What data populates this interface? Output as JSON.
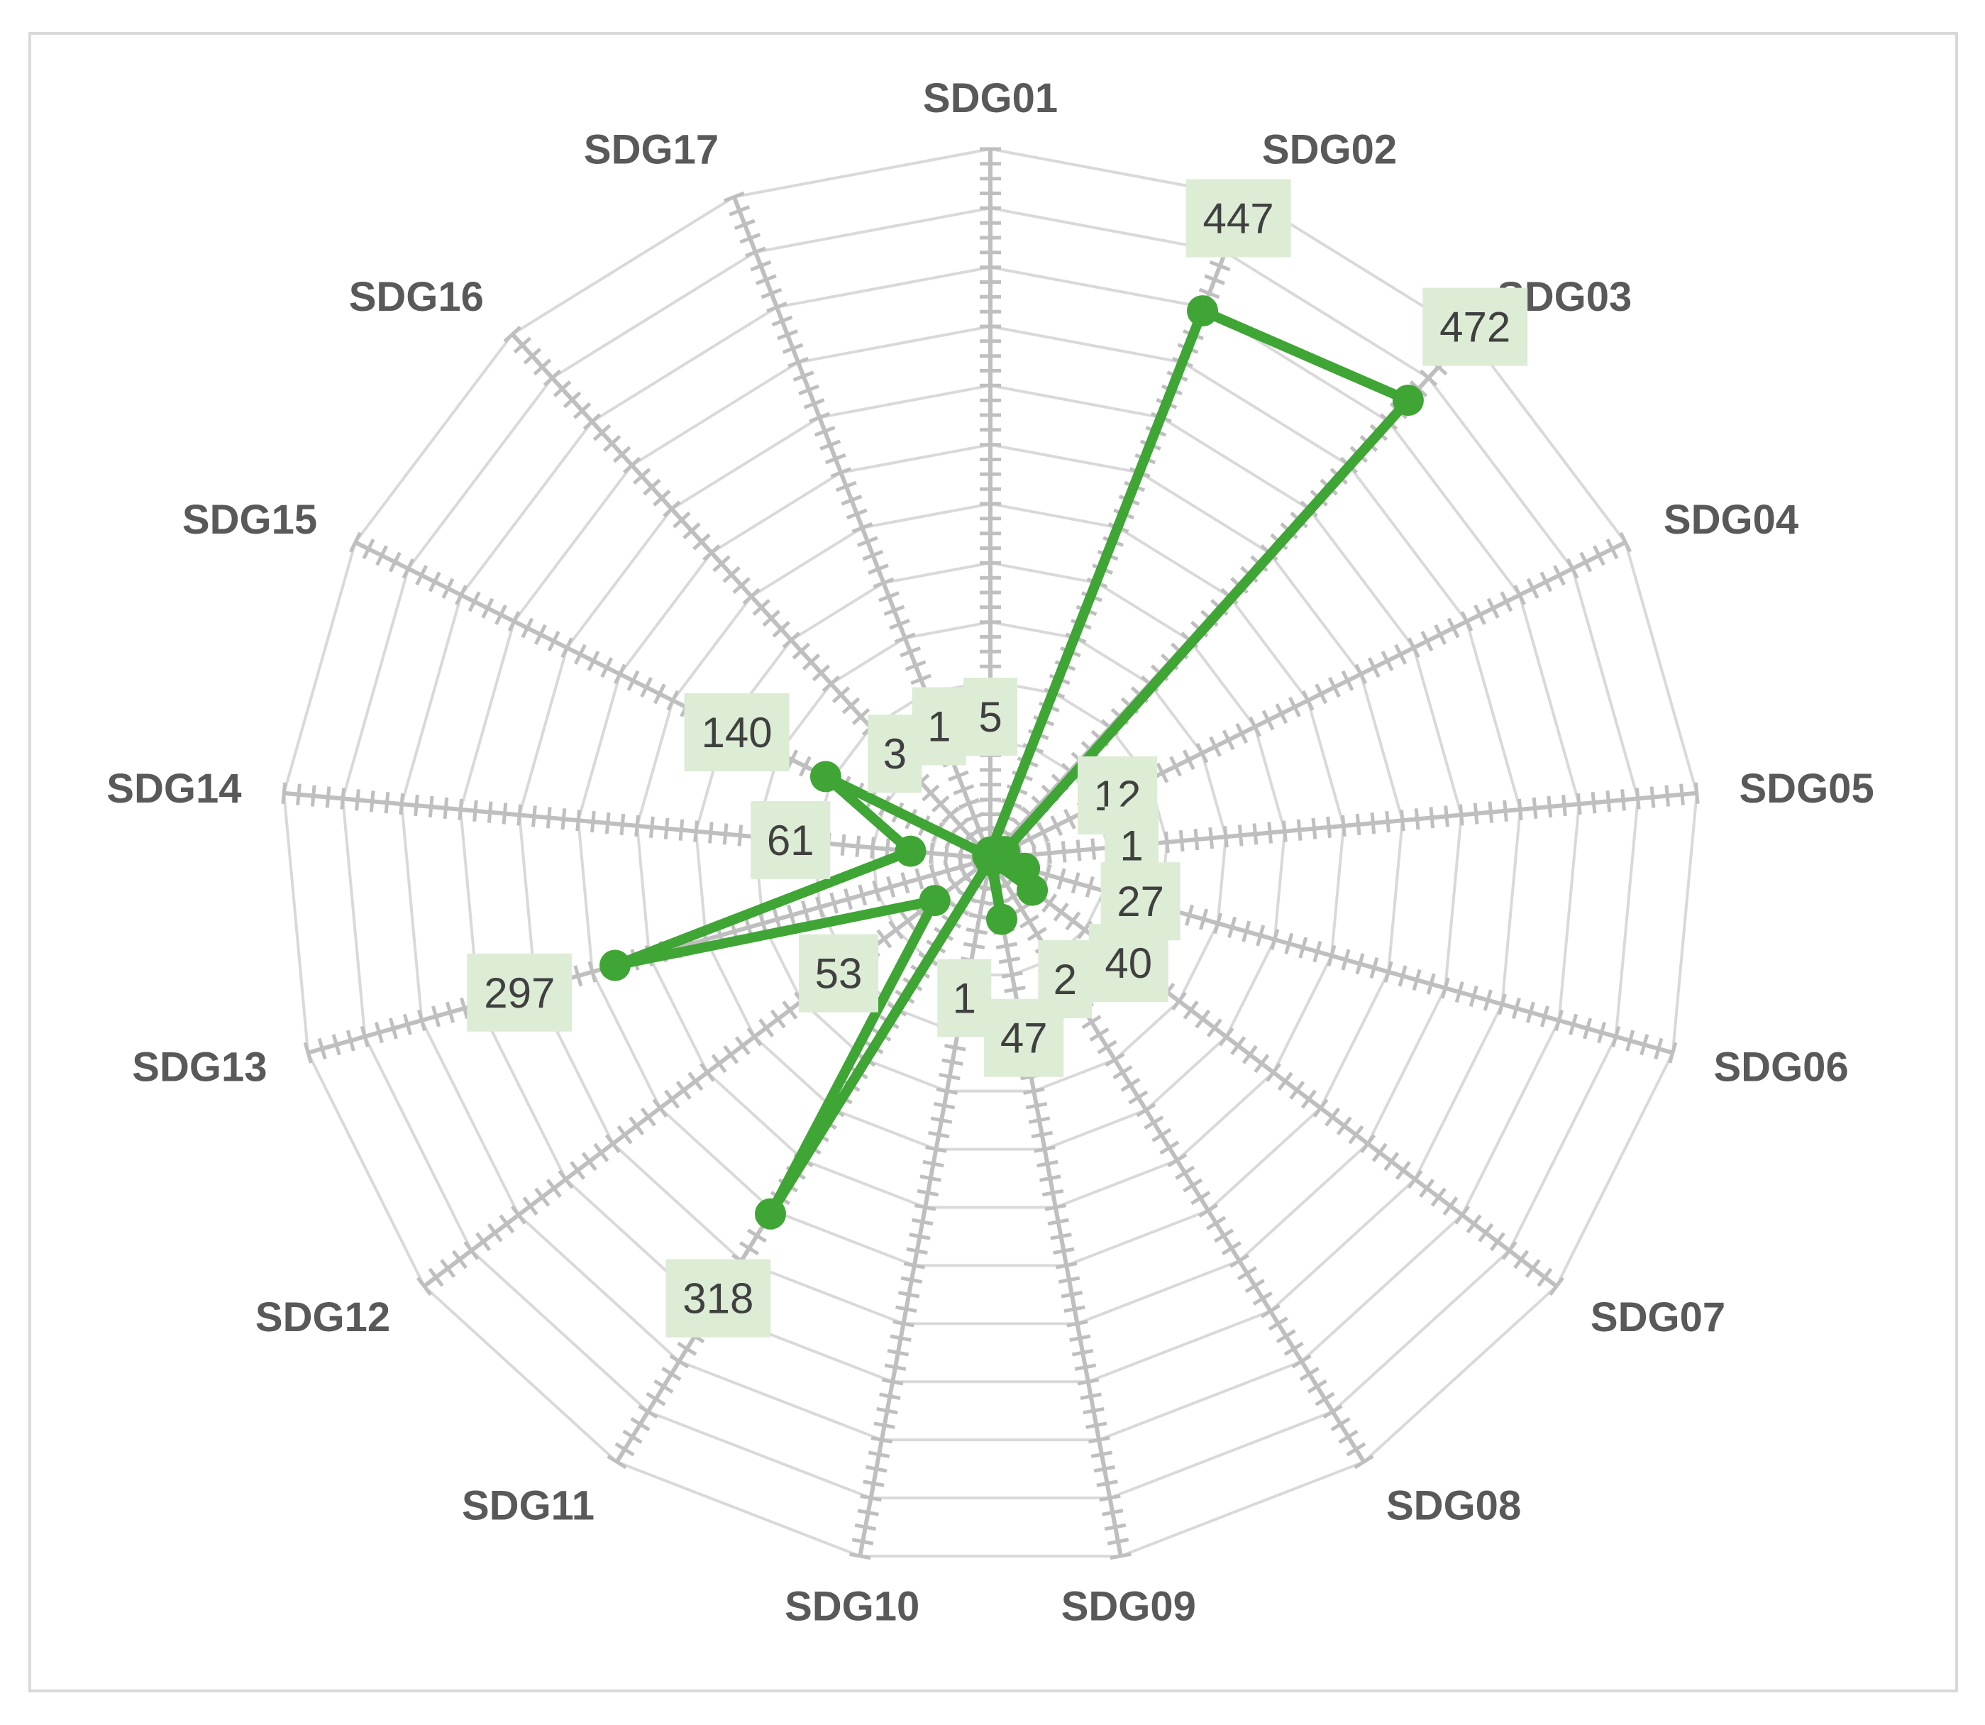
{
  "chart_data": {
    "type": "radar",
    "categories": [
      "SDG01",
      "SDG02",
      "SDG03",
      "SDG04",
      "SDG05",
      "SDG06",
      "SDG07",
      "SDG08",
      "SDG09",
      "SDG10",
      "SDG11",
      "SDG12",
      "SDG13",
      "SDG14",
      "SDG15",
      "SDG16",
      "SDG17"
    ],
    "series": [
      {
        "values": [
          5,
          447,
          472,
          12,
          1,
          27,
          40,
          2,
          47,
          1,
          318,
          53,
          297,
          61,
          140,
          3,
          1
        ],
        "color": "#3fa535"
      }
    ],
    "data_labels": [
      "5",
      "447",
      "472",
      "12",
      "1",
      "27",
      "40",
      "2",
      "47",
      "1",
      "318",
      "53",
      "297",
      "61",
      "140",
      "3",
      "1"
    ],
    "rlim": [
      0,
      540
    ],
    "grid": true,
    "legend": "none",
    "colors": {
      "series": "#3fa535",
      "label_box": "#dcecd5",
      "grid": "#d9d9d9",
      "axis": "#bfbfbf",
      "axis_label": "#595959",
      "data_label_text": "#404040"
    }
  }
}
